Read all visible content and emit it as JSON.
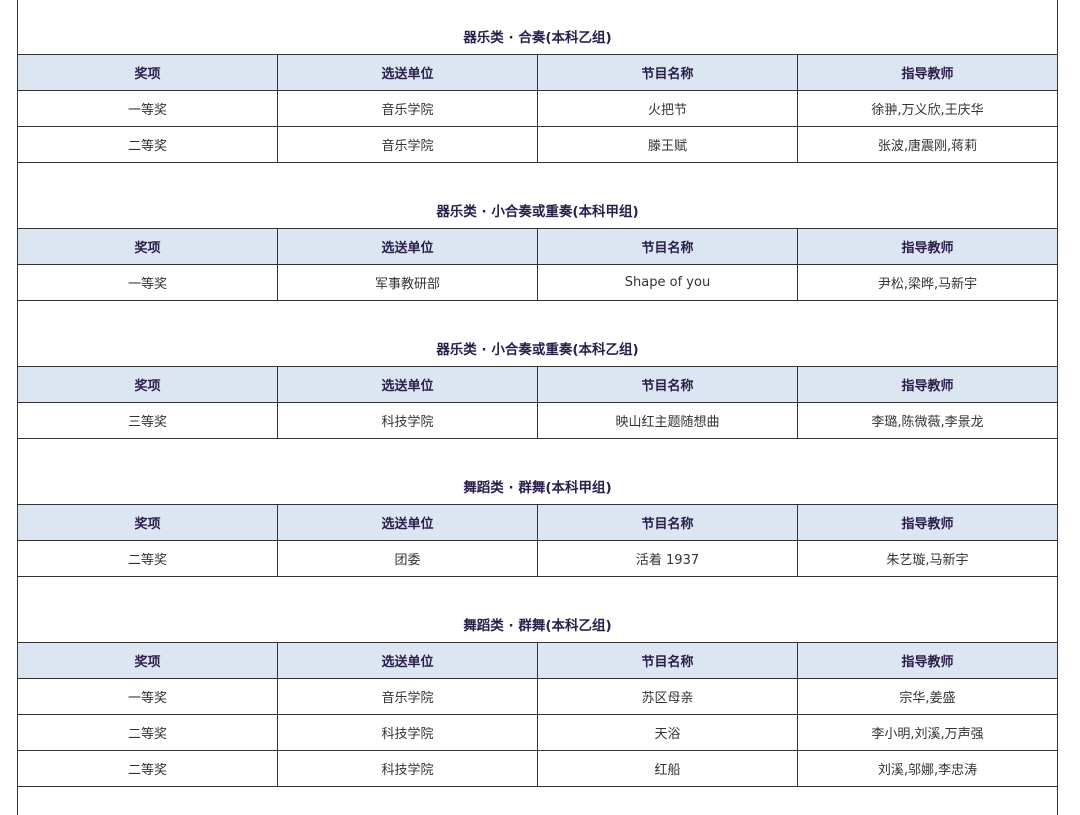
{
  "headers": [
    "奖项",
    "选送单位",
    "节目名称",
    "指导教师"
  ],
  "sections": [
    {
      "title": "器乐类 · 合奏(本科乙组)",
      "rows": [
        [
          "一等奖",
          "音乐学院",
          "火把节",
          "徐翀,万义欣,王庆华"
        ],
        [
          "二等奖",
          "音乐学院",
          "滕王赋",
          "张波,唐震刚,蒋莉"
        ]
      ]
    },
    {
      "title": "器乐类 · 小合奏或重奏(本科甲组)",
      "rows": [
        [
          "一等奖",
          "军事教研部",
          "Shape of you",
          "尹松,梁晔,马新宇"
        ]
      ]
    },
    {
      "title": "器乐类 · 小合奏或重奏(本科乙组)",
      "rows": [
        [
          "三等奖",
          "科技学院",
          "映山红主题随想曲",
          "李璐,陈微薇,李景龙"
        ]
      ]
    },
    {
      "title": "舞蹈类 · 群舞(本科甲组)",
      "rows": [
        [
          "二等奖",
          "团委",
          "活着 1937",
          "朱艺璇,马新宇"
        ]
      ]
    },
    {
      "title": "舞蹈类 · 群舞(本科乙组)",
      "rows": [
        [
          "一等奖",
          "音乐学院",
          "苏区母亲",
          "宗华,姜盛"
        ],
        [
          "二等奖",
          "科技学院",
          "天浴",
          "李小明,刘溪,万声强"
        ],
        [
          "二等奖",
          "科技学院",
          "红船",
          "刘溪,邬娜,李忠涛"
        ]
      ]
    }
  ],
  "colors": {
    "header_bg": "#dce6f2",
    "title_text": "#2a1f4a"
  }
}
